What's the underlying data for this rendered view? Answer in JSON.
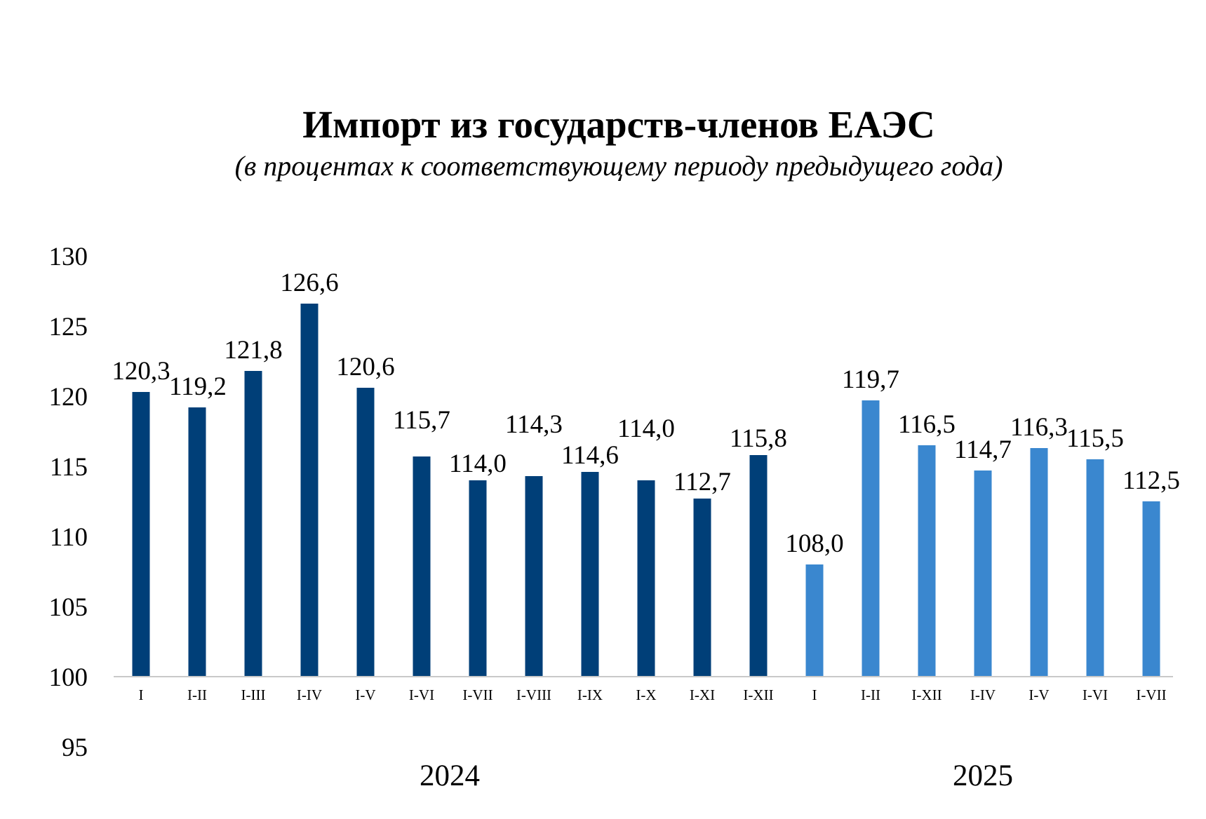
{
  "chart_data": {
    "type": "bar",
    "title": "Импорт из государств-членов ЕАЭС",
    "subtitle": "(в процентах к соответствующему периоду предыдущего года)",
    "ylim": [
      95,
      130
    ],
    "yticks": [
      "130",
      "125",
      "120",
      "115",
      "110",
      "105",
      "100",
      "95"
    ],
    "grid": false,
    "legend": "none",
    "groups": [
      {
        "label": "2024",
        "color": "#003f78",
        "categories": [
          "I",
          "I-II",
          "I-III",
          "I-IV",
          "I-V",
          "I-VI",
          "I-VII",
          "I-VIII",
          "I-IX",
          "I-X",
          "I-XI",
          "I-XII"
        ],
        "values": [
          120.3,
          119.2,
          121.8,
          126.6,
          120.6,
          115.7,
          114.0,
          114.3,
          114.6,
          114.0,
          112.7,
          115.8
        ],
        "labels": [
          "120,3",
          "119,2",
          "121,8",
          "126,6",
          "120,6",
          "115,7",
          "114,0",
          "114,3",
          "114,6",
          "114,0",
          "112,7",
          "115,8"
        ]
      },
      {
        "label": "2025",
        "color": "#3a87cf",
        "categories": [
          "I",
          "I-II",
          "I-XII",
          "I-IV",
          "I-V",
          "I-VI",
          "I-VII"
        ],
        "values": [
          108.0,
          119.7,
          116.5,
          114.7,
          116.3,
          115.5,
          112.5
        ],
        "labels": [
          "108,0",
          "119,7",
          "116,5",
          "114,7",
          "116,3",
          "115,5",
          "112,5"
        ]
      }
    ]
  }
}
